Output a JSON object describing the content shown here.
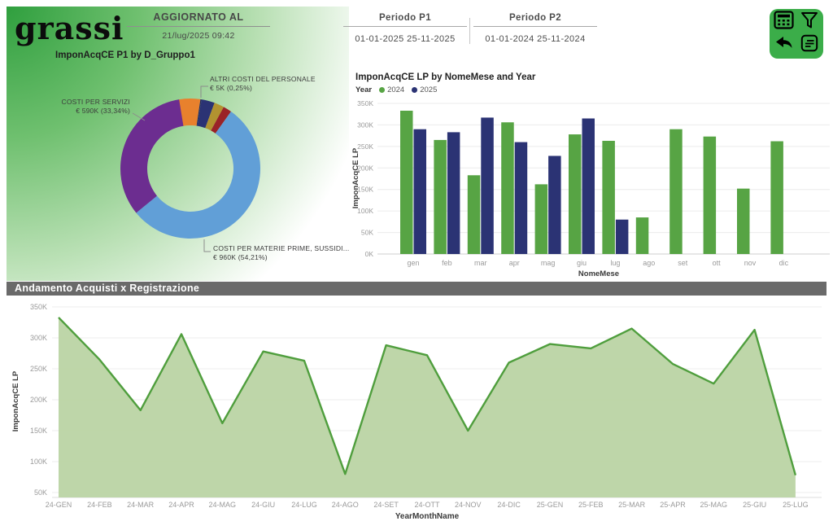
{
  "app": {
    "logo_text": "grassi"
  },
  "updated": {
    "label": "AGGIORNATO AL",
    "value": "21/lug/2025 09:42"
  },
  "periods": [
    {
      "label": "Periodo P1",
      "value": "01-01-2025 25-11-2025"
    },
    {
      "label": "Periodo P2",
      "value": "01-01-2024 25-11-2024"
    }
  ],
  "toolbar": {
    "background": "#3bad49",
    "icons": [
      "calculator",
      "filter",
      "undo",
      "notes"
    ]
  },
  "section_titles": {
    "donut": "ImponAcqCE P1 by D_Gruppo1",
    "bar": "ImponAcqCE LP by NomeMese and Year",
    "area_banner": "Andamento Acquisti x Registrazione"
  },
  "donut_callouts": [
    {
      "line1": "ALTRI COSTI DEL PERSONALE",
      "line2": "€ 5K (0,25%)"
    },
    {
      "line1": "COSTI PER SERVIZI",
      "line2": "€ 590K (33,34%)"
    },
    {
      "line1": "COSTI PER MATERIE PRIME, SUSSIDI...",
      "line2": "€ 960K (54,21%)"
    }
  ],
  "chart_data": [
    {
      "id": "donut",
      "type": "pie",
      "title": "ImponAcqCE P1 by D_Gruppo1",
      "donut": true,
      "rotation_deg": -9.6,
      "units": "EUR K",
      "slices": [
        {
          "label": "",
          "pct": 4.97,
          "color": "#e8812d"
        },
        {
          "label": "ALTRI COSTI DEL PERSONALE",
          "value_text": "€ 5K (0,25%)",
          "pct": 0.25,
          "color": "#1f2a5e"
        },
        {
          "label": "",
          "pct": 3.06,
          "color": "#2b3374"
        },
        {
          "label": "",
          "pct": 2.3,
          "color": "#b29330"
        },
        {
          "label": "",
          "pct": 1.96,
          "color": "#9a2328"
        },
        {
          "label": "COSTI PER MATERIE PRIME, SUSSIDI...",
          "value_text": "€ 960K (54,21%)",
          "pct": 54.21,
          "color": "#619fd7"
        },
        {
          "label": "COSTI PER SERVIZI",
          "value_text": "€ 590K (33,34%)",
          "pct": 33.34,
          "color": "#6c2d90"
        }
      ]
    },
    {
      "id": "bar",
      "type": "bar",
      "title": "ImponAcqCE LP by NomeMese and Year",
      "categories": [
        "gen",
        "feb",
        "mar",
        "apr",
        "mag",
        "giu",
        "lug",
        "ago",
        "set",
        "ott",
        "nov",
        "dic"
      ],
      "series": [
        {
          "name": "2024",
          "color": "#57a444",
          "values": [
            333,
            265,
            183,
            306,
            162,
            278,
            263,
            85,
            290,
            273,
            152,
            262
          ]
        },
        {
          "name": "2025",
          "color": "#2b3374",
          "values": [
            290,
            283,
            317,
            260,
            228,
            315,
            80,
            null,
            null,
            null,
            null,
            null
          ]
        }
      ],
      "legend_title": "Year",
      "legend_position": "top",
      "xlabel": "NomeMese",
      "ylabel": "ImponAcqCE LP",
      "ylim": [
        0,
        350
      ],
      "ytick_step": 50,
      "ytick_suffix": "K",
      "grid": true
    },
    {
      "id": "area",
      "type": "area",
      "title": "Andamento Acquisti x Registrazione",
      "x": [
        "24-GEN",
        "24-FEB",
        "24-MAR",
        "24-APR",
        "24-MAG",
        "24-GIU",
        "24-LUG",
        "24-AGO",
        "24-SET",
        "24-OTT",
        "24-NOV",
        "24-DIC",
        "25-GEN",
        "25-FEB",
        "25-MAR",
        "25-APR",
        "25-MAG",
        "25-GIU",
        "25-LUG"
      ],
      "values": [
        333,
        265,
        183,
        306,
        162,
        278,
        263,
        80,
        288,
        272,
        150,
        260,
        290,
        283,
        315,
        258,
        226,
        313,
        78
      ],
      "xlabel": "YearMonthName",
      "ylabel": "ImponAcqCE LP",
      "ylim": [
        45,
        355
      ],
      "yticks": [
        50,
        100,
        150,
        200,
        250,
        300,
        350
      ],
      "ytick_suffix": "K",
      "fill_color": "#b8d2a2",
      "line_color": "#4f9e3d",
      "grid": true
    }
  ]
}
